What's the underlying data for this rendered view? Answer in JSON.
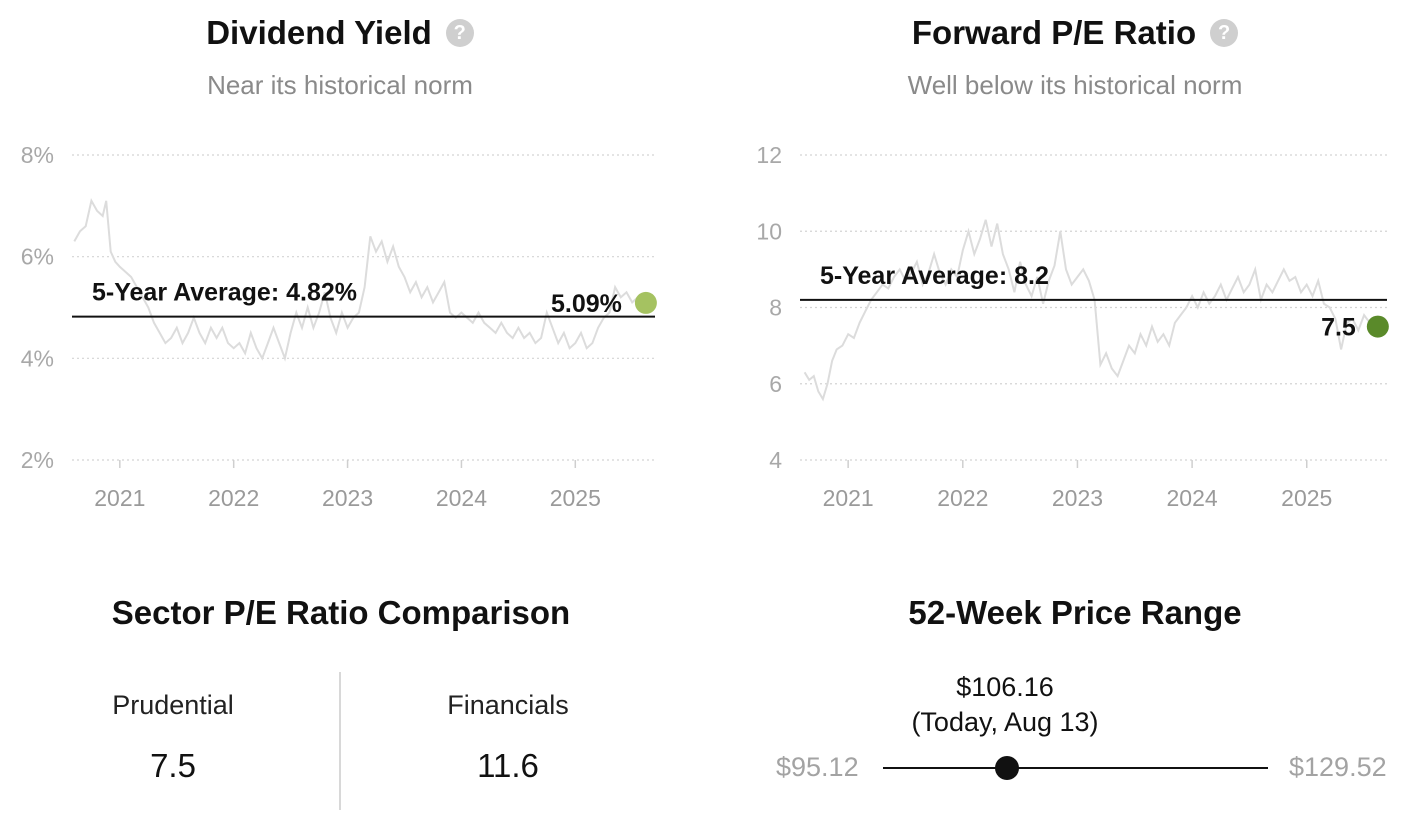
{
  "chart_data": [
    {
      "type": "line",
      "title": "Dividend Yield",
      "subtitle": "Near its historical norm",
      "y_tick_labels": [
        "8%",
        "6%",
        "4%",
        "2%"
      ],
      "y_ticks": [
        8,
        6,
        4,
        2
      ],
      "ylim": [
        1.6,
        8.2
      ],
      "x_tick_labels": [
        "2021",
        "2022",
        "2023",
        "2024",
        "2025"
      ],
      "x_ticks": [
        2021,
        2022,
        2023,
        2024,
        2025
      ],
      "xlim": [
        2020.58,
        2025.7
      ],
      "grid": true,
      "series": [
        {
          "points": [
            [
              2020.6,
              6.3
            ],
            [
              2020.65,
              6.5
            ],
            [
              2020.7,
              6.6
            ],
            [
              2020.75,
              7.1
            ],
            [
              2020.8,
              6.9
            ],
            [
              2020.85,
              6.8
            ],
            [
              2020.88,
              7.1
            ],
            [
              2020.92,
              6.1
            ],
            [
              2020.96,
              5.9
            ],
            [
              2021.0,
              5.8
            ],
            [
              2021.05,
              5.7
            ],
            [
              2021.1,
              5.6
            ],
            [
              2021.15,
              5.4
            ],
            [
              2021.2,
              5.2
            ],
            [
              2021.25,
              5.0
            ],
            [
              2021.3,
              4.7
            ],
            [
              2021.35,
              4.5
            ],
            [
              2021.4,
              4.3
            ],
            [
              2021.45,
              4.4
            ],
            [
              2021.5,
              4.6
            ],
            [
              2021.55,
              4.3
            ],
            [
              2021.6,
              4.5
            ],
            [
              2021.65,
              4.8
            ],
            [
              2021.7,
              4.5
            ],
            [
              2021.75,
              4.3
            ],
            [
              2021.8,
              4.6
            ],
            [
              2021.85,
              4.4
            ],
            [
              2021.9,
              4.6
            ],
            [
              2021.95,
              4.3
            ],
            [
              2022.0,
              4.2
            ],
            [
              2022.05,
              4.3
            ],
            [
              2022.1,
              4.1
            ],
            [
              2022.15,
              4.5
            ],
            [
              2022.2,
              4.2
            ],
            [
              2022.25,
              4.0
            ],
            [
              2022.3,
              4.3
            ],
            [
              2022.35,
              4.6
            ],
            [
              2022.4,
              4.3
            ],
            [
              2022.45,
              4.0
            ],
            [
              2022.5,
              4.5
            ],
            [
              2022.55,
              4.9
            ],
            [
              2022.6,
              4.6
            ],
            [
              2022.65,
              5.0
            ],
            [
              2022.7,
              4.6
            ],
            [
              2022.75,
              4.9
            ],
            [
              2022.8,
              5.3
            ],
            [
              2022.85,
              4.8
            ],
            [
              2022.9,
              4.5
            ],
            [
              2022.95,
              4.9
            ],
            [
              2023.0,
              4.6
            ],
            [
              2023.05,
              4.8
            ],
            [
              2023.1,
              4.9
            ],
            [
              2023.15,
              5.4
            ],
            [
              2023.2,
              6.4
            ],
            [
              2023.25,
              6.1
            ],
            [
              2023.3,
              6.3
            ],
            [
              2023.35,
              5.9
            ],
            [
              2023.4,
              6.2
            ],
            [
              2023.45,
              5.8
            ],
            [
              2023.5,
              5.6
            ],
            [
              2023.55,
              5.3
            ],
            [
              2023.6,
              5.5
            ],
            [
              2023.65,
              5.2
            ],
            [
              2023.7,
              5.4
            ],
            [
              2023.75,
              5.1
            ],
            [
              2023.8,
              5.3
            ],
            [
              2023.85,
              5.5
            ],
            [
              2023.9,
              4.9
            ],
            [
              2023.95,
              4.8
            ],
            [
              2024.0,
              4.9
            ],
            [
              2024.05,
              4.8
            ],
            [
              2024.1,
              4.7
            ],
            [
              2024.15,
              4.9
            ],
            [
              2024.2,
              4.7
            ],
            [
              2024.25,
              4.6
            ],
            [
              2024.3,
              4.5
            ],
            [
              2024.35,
              4.7
            ],
            [
              2024.4,
              4.5
            ],
            [
              2024.45,
              4.4
            ],
            [
              2024.5,
              4.6
            ],
            [
              2024.55,
              4.4
            ],
            [
              2024.6,
              4.5
            ],
            [
              2024.65,
              4.3
            ],
            [
              2024.7,
              4.4
            ],
            [
              2024.75,
              4.9
            ],
            [
              2024.8,
              4.6
            ],
            [
              2024.85,
              4.3
            ],
            [
              2024.9,
              4.5
            ],
            [
              2024.95,
              4.2
            ],
            [
              2025.0,
              4.3
            ],
            [
              2025.05,
              4.5
            ],
            [
              2025.1,
              4.2
            ],
            [
              2025.15,
              4.3
            ],
            [
              2025.2,
              4.6
            ],
            [
              2025.25,
              4.8
            ],
            [
              2025.3,
              4.9
            ],
            [
              2025.35,
              5.4
            ],
            [
              2025.4,
              5.2
            ],
            [
              2025.45,
              5.3
            ],
            [
              2025.5,
              5.1
            ],
            [
              2025.55,
              5.2
            ],
            [
              2025.62,
              5.09
            ]
          ]
        }
      ],
      "average": {
        "value": 4.82,
        "label": "5-Year Average: 4.82%"
      },
      "current": {
        "x": 2025.62,
        "value": 5.09,
        "label": "5.09%",
        "color": "#a5c261"
      },
      "line_color": "#dcdcdc"
    },
    {
      "type": "line",
      "title": "Forward P/E Ratio",
      "subtitle": "Well below its historical norm",
      "y_tick_labels": [
        "12",
        "10",
        "8",
        "6",
        "4"
      ],
      "y_ticks": [
        12,
        10,
        8,
        6,
        4
      ],
      "ylim": [
        3.2,
        12.3
      ],
      "x_tick_labels": [
        "2021",
        "2022",
        "2023",
        "2024",
        "2025"
      ],
      "x_ticks": [
        2021,
        2022,
        2023,
        2024,
        2025
      ],
      "xlim": [
        2020.58,
        2025.7
      ],
      "grid": true,
      "series": [
        {
          "points": [
            [
              2020.62,
              6.3
            ],
            [
              2020.66,
              6.1
            ],
            [
              2020.7,
              6.2
            ],
            [
              2020.74,
              5.8
            ],
            [
              2020.78,
              5.6
            ],
            [
              2020.82,
              6.0
            ],
            [
              2020.86,
              6.6
            ],
            [
              2020.9,
              6.9
            ],
            [
              2020.95,
              7.0
            ],
            [
              2021.0,
              7.3
            ],
            [
              2021.05,
              7.2
            ],
            [
              2021.1,
              7.6
            ],
            [
              2021.15,
              7.9
            ],
            [
              2021.2,
              8.2
            ],
            [
              2021.25,
              8.4
            ],
            [
              2021.3,
              8.6
            ],
            [
              2021.35,
              8.5
            ],
            [
              2021.4,
              8.8
            ],
            [
              2021.45,
              9.0
            ],
            [
              2021.5,
              8.7
            ],
            [
              2021.55,
              8.9
            ],
            [
              2021.6,
              9.2
            ],
            [
              2021.65,
              8.6
            ],
            [
              2021.7,
              8.9
            ],
            [
              2021.75,
              9.4
            ],
            [
              2021.8,
              8.9
            ],
            [
              2021.85,
              8.6
            ],
            [
              2021.9,
              9.0
            ],
            [
              2021.95,
              8.8
            ],
            [
              2022.0,
              9.5
            ],
            [
              2022.05,
              10.0
            ],
            [
              2022.1,
              9.4
            ],
            [
              2022.15,
              9.8
            ],
            [
              2022.2,
              10.3
            ],
            [
              2022.25,
              9.6
            ],
            [
              2022.3,
              10.2
            ],
            [
              2022.35,
              9.4
            ],
            [
              2022.4,
              9.0
            ],
            [
              2022.45,
              8.4
            ],
            [
              2022.5,
              9.2
            ],
            [
              2022.55,
              8.6
            ],
            [
              2022.6,
              8.3
            ],
            [
              2022.65,
              8.8
            ],
            [
              2022.7,
              8.1
            ],
            [
              2022.75,
              8.7
            ],
            [
              2022.8,
              9.1
            ],
            [
              2022.85,
              10.0
            ],
            [
              2022.9,
              9.0
            ],
            [
              2022.95,
              8.6
            ],
            [
              2023.0,
              8.8
            ],
            [
              2023.05,
              9.0
            ],
            [
              2023.1,
              8.7
            ],
            [
              2023.15,
              8.2
            ],
            [
              2023.2,
              6.5
            ],
            [
              2023.25,
              6.8
            ],
            [
              2023.3,
              6.4
            ],
            [
              2023.35,
              6.2
            ],
            [
              2023.4,
              6.6
            ],
            [
              2023.45,
              7.0
            ],
            [
              2023.5,
              6.8
            ],
            [
              2023.55,
              7.3
            ],
            [
              2023.6,
              7.0
            ],
            [
              2023.65,
              7.5
            ],
            [
              2023.7,
              7.1
            ],
            [
              2023.75,
              7.3
            ],
            [
              2023.8,
              7.0
            ],
            [
              2023.85,
              7.6
            ],
            [
              2023.9,
              7.8
            ],
            [
              2023.95,
              8.0
            ],
            [
              2024.0,
              8.3
            ],
            [
              2024.05,
              8.0
            ],
            [
              2024.1,
              8.4
            ],
            [
              2024.15,
              8.1
            ],
            [
              2024.2,
              8.3
            ],
            [
              2024.25,
              8.6
            ],
            [
              2024.3,
              8.2
            ],
            [
              2024.35,
              8.5
            ],
            [
              2024.4,
              8.8
            ],
            [
              2024.45,
              8.4
            ],
            [
              2024.5,
              8.6
            ],
            [
              2024.55,
              9.0
            ],
            [
              2024.6,
              8.2
            ],
            [
              2024.65,
              8.6
            ],
            [
              2024.7,
              8.4
            ],
            [
              2024.75,
              8.7
            ],
            [
              2024.8,
              9.0
            ],
            [
              2024.85,
              8.7
            ],
            [
              2024.9,
              8.8
            ],
            [
              2024.95,
              8.4
            ],
            [
              2025.0,
              8.6
            ],
            [
              2025.05,
              8.3
            ],
            [
              2025.1,
              8.7
            ],
            [
              2025.15,
              8.1
            ],
            [
              2025.2,
              8.0
            ],
            [
              2025.25,
              7.7
            ],
            [
              2025.3,
              6.9
            ],
            [
              2025.35,
              7.6
            ],
            [
              2025.4,
              7.7
            ],
            [
              2025.45,
              7.4
            ],
            [
              2025.5,
              7.8
            ],
            [
              2025.55,
              7.6
            ],
            [
              2025.62,
              7.5
            ]
          ]
        }
      ],
      "average": {
        "value": 8.2,
        "label": "5-Year Average: 8.2"
      },
      "current": {
        "x": 2025.62,
        "value": 7.5,
        "label": "7.5",
        "color": "#5a8a2a"
      },
      "line_color": "#dcdcdc"
    }
  ],
  "sector": {
    "title": "Sector P/E Ratio Comparison",
    "company_label": "Prudential",
    "company_value": "7.5",
    "sector_label": "Financials",
    "sector_value": "11.6"
  },
  "price_range": {
    "title": "52-Week Price Range",
    "low": "$95.12",
    "high": "$129.52",
    "current_price": "$106.16",
    "current_note": "(Today, Aug 13)",
    "low_value": 95.12,
    "high_value": 129.52,
    "current_value": 106.16
  }
}
